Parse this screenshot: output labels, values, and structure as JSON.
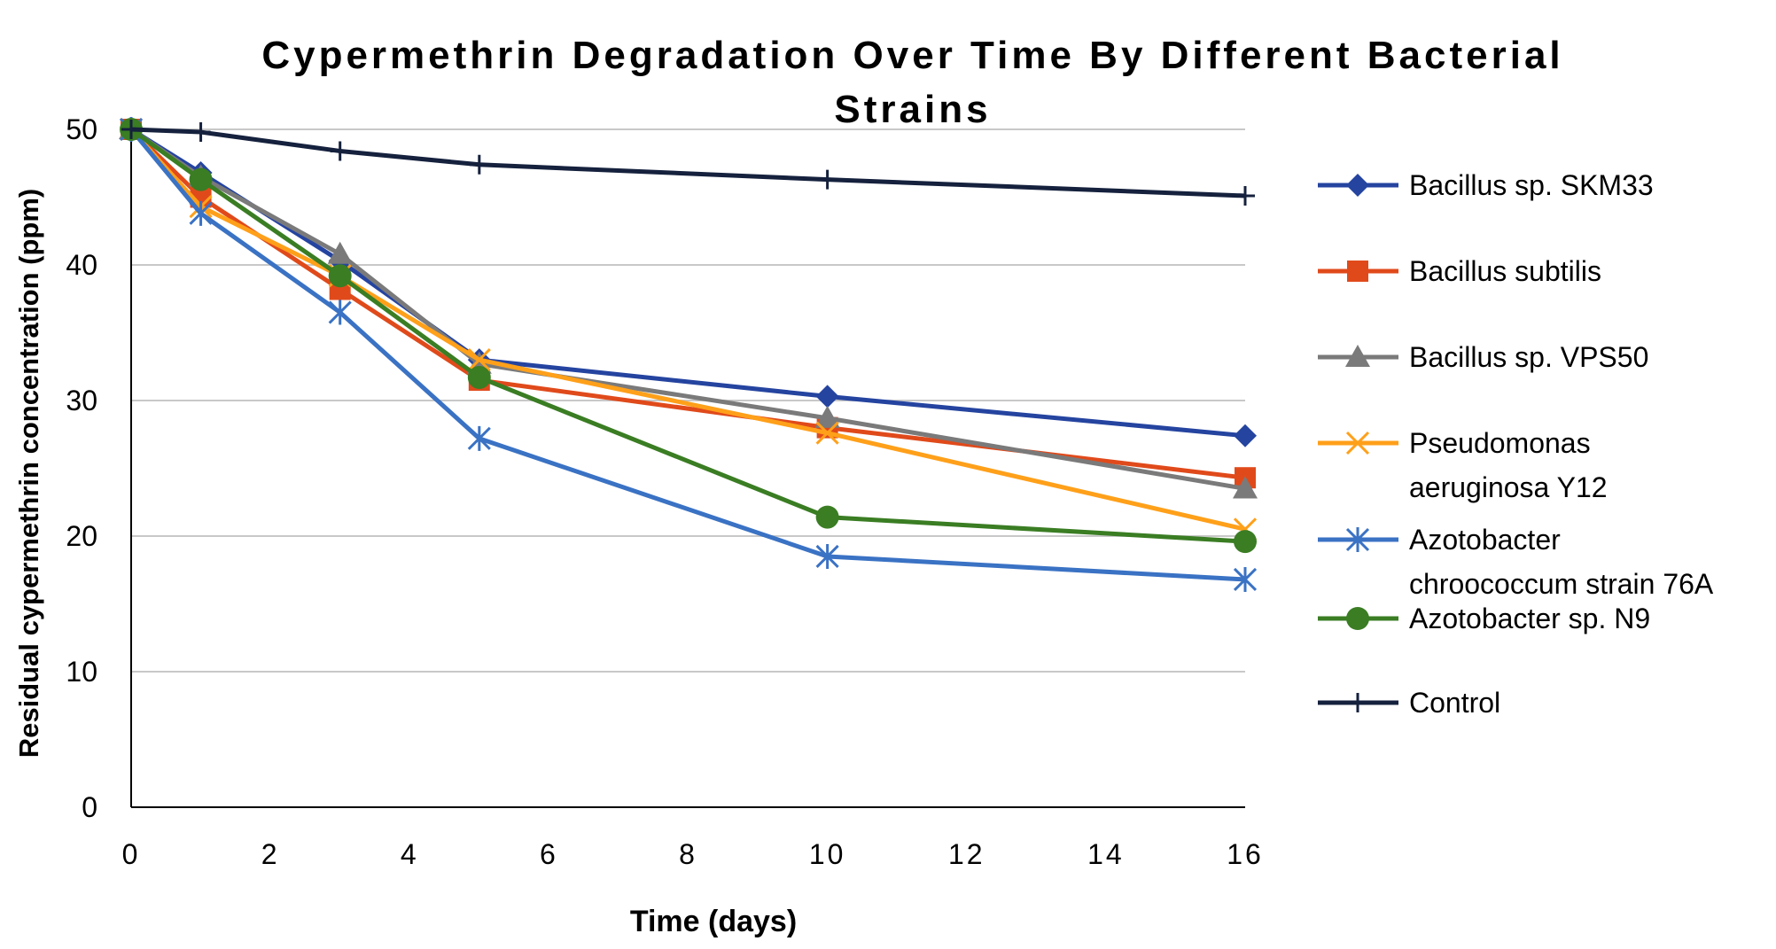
{
  "chart_data": {
    "type": "line",
    "title": "Cypermethrin Degradation Over Time By Different Bacterial Strains",
    "title_lines": [
      "Cypermethrin Degradation Over Time By Different Bacterial",
      "Strains"
    ],
    "xlabel": "Time (days)",
    "ylabel": "Residual cypermethrin concentration (ppm)",
    "xlim": [
      0,
      16
    ],
    "ylim": [
      0,
      50
    ],
    "xticks": [
      0,
      2,
      4,
      6,
      8,
      10,
      12,
      14,
      16
    ],
    "yticks": [
      0,
      10,
      20,
      30,
      40,
      50
    ],
    "grid": "horizontal",
    "legend_position": "right",
    "x": [
      0,
      1,
      3,
      5,
      10,
      16
    ],
    "series": [
      {
        "name": "Bacillus sp. SKM33",
        "name_lines": [
          "Bacillus sp. SKM33"
        ],
        "color": "#2544a0",
        "marker": "diamond",
        "values": [
          50,
          46.8,
          40.3,
          33.0,
          30.3,
          27.4
        ]
      },
      {
        "name": "Bacillus subtilis",
        "name_lines": [
          "Bacillus subtilis"
        ],
        "color": "#e04a1b",
        "marker": "square",
        "values": [
          50,
          45.0,
          38.2,
          31.5,
          28.0,
          24.3
        ]
      },
      {
        "name": "Bacillus sp. VPS50",
        "name_lines": [
          "Bacillus sp. VPS50"
        ],
        "color": "#7a7a7a",
        "marker": "triangle",
        "values": [
          50,
          46.5,
          40.8,
          32.7,
          28.7,
          23.5
        ]
      },
      {
        "name": "Pseudomonas aeruginosa Y12",
        "name_lines": [
          "Pseudomonas",
          "aeruginosa Y12"
        ],
        "color": "#ffa01a",
        "marker": "x",
        "values": [
          50,
          44.3,
          39.2,
          33.0,
          27.6,
          20.5
        ]
      },
      {
        "name": "Azotobacter chroococcum strain 76A",
        "name_lines": [
          "Azotobacter",
          "chroococcum strain 76A"
        ],
        "color": "#3a72c4",
        "marker": "asterisk",
        "values": [
          50,
          43.8,
          36.5,
          27.2,
          18.5,
          16.8
        ]
      },
      {
        "name": "Azotobacter sp. N9",
        "name_lines": [
          "Azotobacter sp. N9"
        ],
        "color": "#3a7d23",
        "marker": "circle",
        "values": [
          50,
          46.3,
          39.2,
          31.7,
          21.4,
          19.6
        ]
      },
      {
        "name": "Control",
        "name_lines": [
          "Control"
        ],
        "color": "#15213d",
        "marker": "plus",
        "values": [
          50,
          49.8,
          48.4,
          47.4,
          46.3,
          45.1
        ]
      }
    ]
  }
}
